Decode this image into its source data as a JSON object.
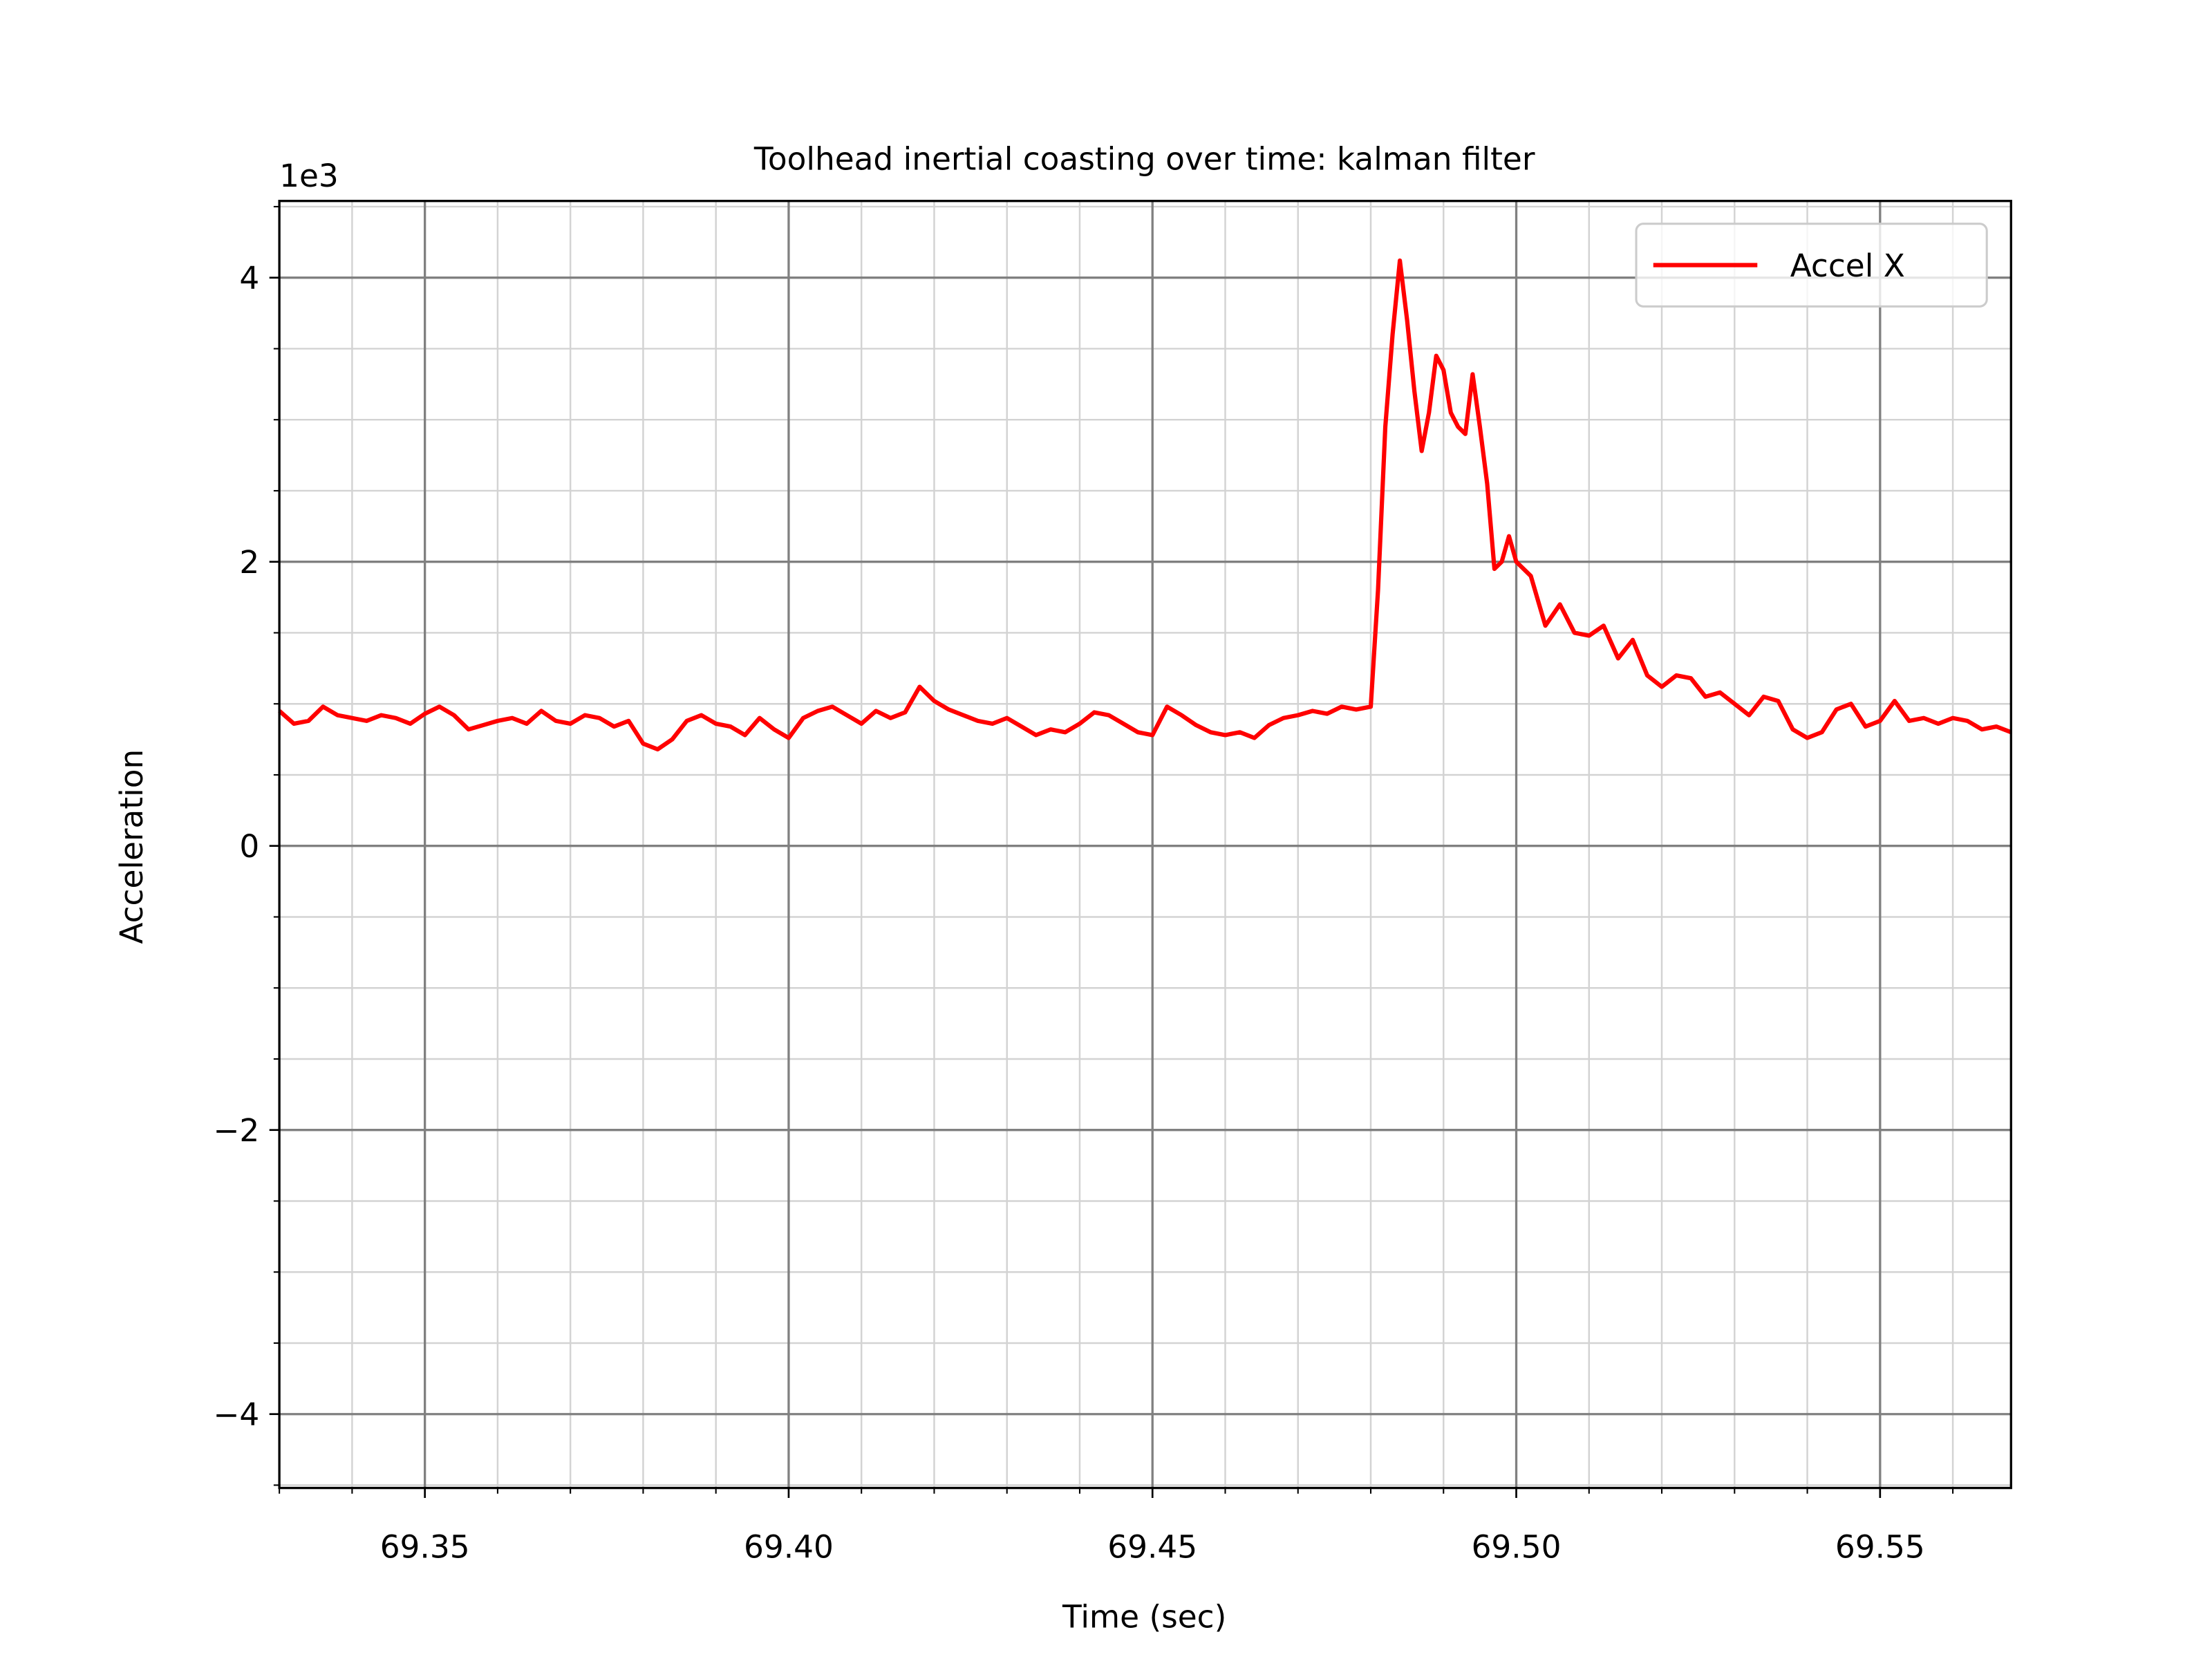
{
  "chart_data": {
    "type": "line",
    "title": "Toolhead inertial coasting over time: kalman filter",
    "x_label": "Time (sec)",
    "y_label": "Acceleration",
    "y_offset_label": "1e3",
    "xlim": [
      69.33,
      69.568
    ],
    "ylim": [
      -4.52,
      4.54
    ],
    "xticks": [
      {
        "value": 69.35,
        "label": "69.35"
      },
      {
        "value": 69.4,
        "label": "69.40"
      },
      {
        "value": 69.45,
        "label": "69.45"
      },
      {
        "value": 69.5,
        "label": "69.50"
      },
      {
        "value": 69.55,
        "label": "69.55"
      }
    ],
    "yticks": [
      {
        "value": -4,
        "label": "−4"
      },
      {
        "value": -2,
        "label": "−2"
      },
      0,
      2,
      4
    ],
    "xminor_ticks": [
      69.33,
      69.34,
      69.36,
      69.37,
      69.38,
      69.39,
      69.41,
      69.42,
      69.43,
      69.44,
      69.46,
      69.47,
      69.48,
      69.49,
      69.51,
      69.52,
      69.53,
      69.54,
      69.56
    ],
    "yminor_ticks": [
      -4.5,
      -3.5,
      -3,
      -2.5,
      -1.5,
      -1,
      -0.5,
      0.5,
      1,
      1.5,
      2.5,
      3,
      3.5,
      4.5
    ],
    "grid": true,
    "legend": "upper right",
    "x": [
      69.33,
      69.332,
      69.334,
      69.336,
      69.338,
      69.34,
      69.342,
      69.344,
      69.346,
      69.348,
      69.35,
      69.352,
      69.354,
      69.356,
      69.358,
      69.36,
      69.362,
      69.364,
      69.366,
      69.368,
      69.37,
      69.372,
      69.374,
      69.376,
      69.378,
      69.38,
      69.382,
      69.384,
      69.386,
      69.388,
      69.39,
      69.392,
      69.394,
      69.396,
      69.398,
      69.4,
      69.402,
      69.404,
      69.406,
      69.408,
      69.41,
      69.412,
      69.414,
      69.416,
      69.418,
      69.42,
      69.422,
      69.424,
      69.426,
      69.428,
      69.43,
      69.432,
      69.434,
      69.436,
      69.438,
      69.44,
      69.442,
      69.444,
      69.446,
      69.448,
      69.45,
      69.452,
      69.454,
      69.456,
      69.458,
      69.46,
      69.462,
      69.464,
      69.466,
      69.468,
      69.47,
      69.472,
      69.474,
      69.476,
      69.478,
      69.48,
      69.481,
      69.482,
      69.483,
      69.484,
      69.485,
      69.486,
      69.487,
      69.488,
      69.489,
      69.49,
      69.491,
      69.492,
      69.493,
      69.494,
      69.495,
      69.496,
      69.497,
      69.498,
      69.499,
      69.5,
      69.502,
      69.504,
      69.506,
      69.508,
      69.51,
      69.512,
      69.514,
      69.516,
      69.518,
      69.52,
      69.522,
      69.524,
      69.526,
      69.528,
      69.53,
      69.532,
      69.534,
      69.536,
      69.538,
      69.54,
      69.542,
      69.544,
      69.546,
      69.548,
      69.55,
      69.552,
      69.554,
      69.556,
      69.558,
      69.56,
      69.562,
      69.564,
      69.566,
      69.568
    ],
    "series": [
      {
        "name": "Accel X",
        "color": "#ff0000",
        "values": [
          0.95,
          0.86,
          0.88,
          0.98,
          0.92,
          0.9,
          0.88,
          0.92,
          0.9,
          0.86,
          0.93,
          0.98,
          0.92,
          0.82,
          0.85,
          0.88,
          0.9,
          0.86,
          0.95,
          0.88,
          0.86,
          0.92,
          0.9,
          0.84,
          0.88,
          0.72,
          0.68,
          0.75,
          0.88,
          0.92,
          0.86,
          0.84,
          0.78,
          0.9,
          0.82,
          0.76,
          0.9,
          0.95,
          0.98,
          0.92,
          0.86,
          0.95,
          0.9,
          0.94,
          1.12,
          1.02,
          0.96,
          0.92,
          0.88,
          0.86,
          0.9,
          0.84,
          0.78,
          0.82,
          0.8,
          0.86,
          0.94,
          0.92,
          0.86,
          0.8,
          0.78,
          0.98,
          0.92,
          0.85,
          0.8,
          0.78,
          0.8,
          0.76,
          0.85,
          0.9,
          0.92,
          0.95,
          0.93,
          0.98,
          0.96,
          0.98,
          1.8,
          2.95,
          3.6,
          4.12,
          3.7,
          3.2,
          2.78,
          3.05,
          3.45,
          3.35,
          3.05,
          2.95,
          2.9,
          3.32,
          2.95,
          2.55,
          1.95,
          2.0,
          2.18,
          2.0,
          1.9,
          1.55,
          1.7,
          1.5,
          1.48,
          1.55,
          1.32,
          1.45,
          1.2,
          1.12,
          1.2,
          1.18,
          1.05,
          1.08,
          1.0,
          0.92,
          1.05,
          1.02,
          0.82,
          0.76,
          0.8,
          0.96,
          1.0,
          0.84,
          0.88,
          1.02,
          0.88,
          0.9,
          0.86,
          0.9,
          0.88,
          0.82,
          0.84,
          0.8
        ]
      }
    ]
  }
}
